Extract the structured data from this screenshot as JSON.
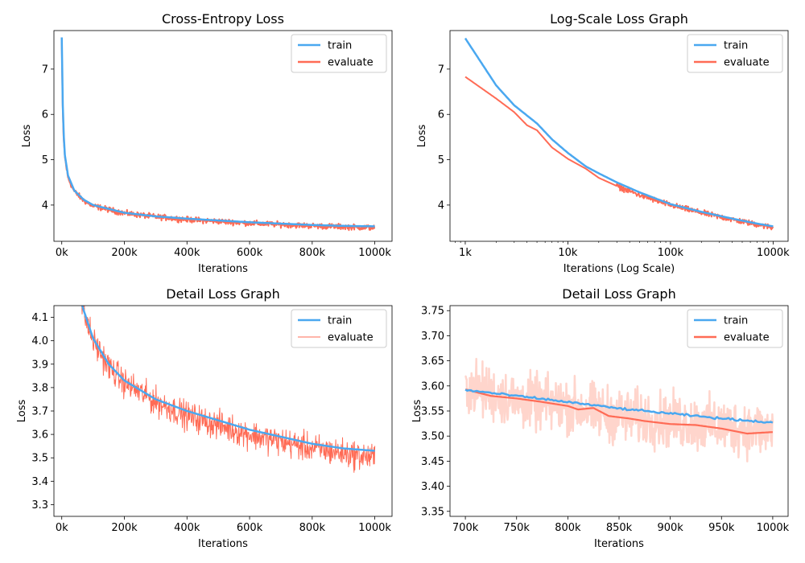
{
  "colors": {
    "train": "#4aa8f0",
    "evaluate": "#ff6b55",
    "evaluate_faded": "#ffd5cc"
  },
  "chart_data": [
    {
      "id": "p1",
      "type": "line",
      "title": "Cross-Entropy Loss",
      "xlabel": "Iterations",
      "ylabel": "Loss",
      "xscale": "linear",
      "xlim": [
        -25000,
        1055000
      ],
      "ylim": [
        3.2,
        7.85
      ],
      "xticks": [
        0,
        200000,
        400000,
        600000,
        800000,
        1000000
      ],
      "xtick_labels": [
        "0k",
        "200k",
        "400k",
        "600k",
        "800k",
        "1000k"
      ],
      "yticks": [
        4,
        5,
        6,
        7
      ],
      "ytick_labels": [
        "4",
        "5",
        "6",
        "7"
      ],
      "legend": [
        "train",
        "evaluate"
      ],
      "legend_position": "top-right",
      "series": [
        {
          "name": "evaluate",
          "style": "noisy",
          "linewidth": 2,
          "points": [
            [
              0,
              7.6
            ],
            [
              2000,
              6.5
            ],
            [
              5000,
              5.6
            ],
            [
              10000,
              5.05
            ],
            [
              20000,
              4.6
            ],
            [
              40000,
              4.3
            ],
            [
              70000,
              4.1
            ],
            [
              100000,
              3.98
            ],
            [
              200000,
              3.82
            ],
            [
              300000,
              3.74
            ],
            [
              400000,
              3.68
            ],
            [
              500000,
              3.64
            ],
            [
              600000,
              3.6
            ],
            [
              700000,
              3.57
            ],
            [
              800000,
              3.54
            ],
            [
              900000,
              3.52
            ],
            [
              1000000,
              3.5
            ]
          ],
          "noise": 0.09
        },
        {
          "name": "train",
          "style": "smooth",
          "linewidth": 2.5,
          "points": [
            [
              0,
              7.7
            ],
            [
              2000,
              6.6
            ],
            [
              5000,
              5.7
            ],
            [
              10000,
              5.1
            ],
            [
              20000,
              4.65
            ],
            [
              40000,
              4.32
            ],
            [
              70000,
              4.12
            ],
            [
              100000,
              4.0
            ],
            [
              200000,
              3.83
            ],
            [
              300000,
              3.75
            ],
            [
              400000,
              3.7
            ],
            [
              500000,
              3.66
            ],
            [
              600000,
              3.62
            ],
            [
              700000,
              3.59
            ],
            [
              800000,
              3.56
            ],
            [
              900000,
              3.54
            ],
            [
              1000000,
              3.53
            ]
          ]
        }
      ]
    },
    {
      "id": "p2",
      "type": "line",
      "title": "Log-Scale Loss Graph",
      "xlabel": "Iterations (Log Scale)",
      "ylabel": "Loss",
      "xscale": "log",
      "xlim": [
        710,
        1400000
      ],
      "ylim": [
        3.2,
        7.85
      ],
      "xticks": [
        1000,
        10000,
        100000,
        1000000
      ],
      "xtick_labels": [
        "1k",
        "10k",
        "100k",
        "1000k"
      ],
      "yticks": [
        4,
        5,
        6,
        7
      ],
      "ytick_labels": [
        "4",
        "5",
        "6",
        "7"
      ],
      "legend": [
        "train",
        "evaluate"
      ],
      "legend_position": "top-right",
      "series": [
        {
          "name": "evaluate",
          "style": "noisy",
          "linewidth": 2,
          "noise_start": 30000,
          "points": [
            [
              1000,
              6.83
            ],
            [
              2000,
              6.35
            ],
            [
              3000,
              6.05
            ],
            [
              4000,
              5.76
            ],
            [
              5000,
              5.65
            ],
            [
              7000,
              5.27
            ],
            [
              10000,
              5.02
            ],
            [
              15000,
              4.8
            ],
            [
              20000,
              4.6
            ],
            [
              30000,
              4.42
            ],
            [
              50000,
              4.22
            ],
            [
              100000,
              4.0
            ],
            [
              200000,
              3.83
            ],
            [
              400000,
              3.68
            ],
            [
              700000,
              3.57
            ],
            [
              1000000,
              3.5
            ]
          ],
          "noise": 0.09
        },
        {
          "name": "train",
          "style": "smooth",
          "linewidth": 2.5,
          "points": [
            [
              1000,
              7.68
            ],
            [
              2000,
              6.64
            ],
            [
              3000,
              6.2
            ],
            [
              5000,
              5.8
            ],
            [
              7000,
              5.45
            ],
            [
              10000,
              5.15
            ],
            [
              15000,
              4.85
            ],
            [
              20000,
              4.7
            ],
            [
              30000,
              4.5
            ],
            [
              50000,
              4.28
            ],
            [
              100000,
              4.02
            ],
            [
              200000,
              3.85
            ],
            [
              400000,
              3.7
            ],
            [
              700000,
              3.59
            ],
            [
              1000000,
              3.53
            ]
          ]
        }
      ]
    },
    {
      "id": "p3",
      "type": "line",
      "title": "Detail Loss Graph",
      "xlabel": "Iterations",
      "ylabel": "Loss",
      "xscale": "linear",
      "xlim": [
        -25000,
        1055000
      ],
      "ylim": [
        3.25,
        4.15
      ],
      "xticks": [
        0,
        200000,
        400000,
        600000,
        800000,
        1000000
      ],
      "xtick_labels": [
        "0k",
        "200k",
        "400k",
        "600k",
        "800k",
        "1000k"
      ],
      "yticks": [
        3.3,
        3.4,
        3.5,
        3.6,
        3.7,
        3.8,
        3.9,
        4.0,
        4.1
      ],
      "ytick_labels": [
        "3.3",
        "3.4",
        "3.5",
        "3.6",
        "3.7",
        "3.8",
        "3.9",
        "4.0",
        "4.1"
      ],
      "legend": [
        "train",
        "evaluate"
      ],
      "legend_position": "top-right",
      "series": [
        {
          "name": "evaluate",
          "style": "noisy",
          "linewidth": 1,
          "points": [
            [
              50000,
              4.25
            ],
            [
              70000,
              4.12
            ],
            [
              100000,
              4.0
            ],
            [
              150000,
              3.89
            ],
            [
              200000,
              3.82
            ],
            [
              300000,
              3.74
            ],
            [
              400000,
              3.68
            ],
            [
              500000,
              3.64
            ],
            [
              600000,
              3.6
            ],
            [
              700000,
              3.57
            ],
            [
              800000,
              3.54
            ],
            [
              900000,
              3.52
            ],
            [
              1000000,
              3.5
            ]
          ],
          "noise": 0.09
        },
        {
          "name": "train",
          "style": "smooth",
          "linewidth": 2.5,
          "points": [
            [
              55000,
              4.2
            ],
            [
              70000,
              4.13
            ],
            [
              100000,
              4.01
            ],
            [
              150000,
              3.9
            ],
            [
              200000,
              3.83
            ],
            [
              300000,
              3.75
            ],
            [
              400000,
              3.7
            ],
            [
              500000,
              3.66
            ],
            [
              600000,
              3.62
            ],
            [
              700000,
              3.59
            ],
            [
              800000,
              3.56
            ],
            [
              900000,
              3.54
            ],
            [
              1000000,
              3.53
            ]
          ]
        }
      ]
    },
    {
      "id": "p4",
      "type": "line",
      "title": "Detail Loss Graph",
      "xlabel": "Iterations",
      "ylabel": "Loss",
      "xscale": "linear",
      "xlim": [
        685000,
        1015000
      ],
      "ylim": [
        3.34,
        3.76
      ],
      "xticks": [
        700000,
        750000,
        800000,
        850000,
        900000,
        950000,
        1000000
      ],
      "xtick_labels": [
        "700k",
        "750k",
        "800k",
        "850k",
        "900k",
        "950k",
        "1000k"
      ],
      "yticks": [
        3.35,
        3.4,
        3.45,
        3.5,
        3.55,
        3.6,
        3.65,
        3.7,
        3.75
      ],
      "ytick_labels": [
        "3.35",
        "3.40",
        "3.45",
        "3.50",
        "3.55",
        "3.60",
        "3.65",
        "3.70",
        "3.75"
      ],
      "legend": [
        "train",
        "evaluate"
      ],
      "legend_position": "top-right",
      "series": [
        {
          "name": "evaluate_raw",
          "style": "noisy",
          "linewidth": 2.5,
          "faded": true,
          "points": [
            [
              700000,
              3.6
            ],
            [
              750000,
              3.57
            ],
            [
              800000,
              3.56
            ],
            [
              850000,
              3.54
            ],
            [
              900000,
              3.53
            ],
            [
              950000,
              3.52
            ],
            [
              1000000,
              3.51
            ]
          ],
          "noise": 0.08
        },
        {
          "name": "evaluate",
          "style": "smooth",
          "linewidth": 2.2,
          "points": [
            [
              700000,
              3.593
            ],
            [
              725000,
              3.58
            ],
            [
              750000,
              3.575
            ],
            [
              775000,
              3.568
            ],
            [
              800000,
              3.56
            ],
            [
              810000,
              3.553
            ],
            [
              825000,
              3.556
            ],
            [
              840000,
              3.54
            ],
            [
              860000,
              3.535
            ],
            [
              875000,
              3.53
            ],
            [
              900000,
              3.524
            ],
            [
              925000,
              3.522
            ],
            [
              950000,
              3.515
            ],
            [
              975000,
              3.505
            ],
            [
              1000000,
              3.508
            ]
          ]
        },
        {
          "name": "train",
          "style": "wavy",
          "linewidth": 2.5,
          "points": [
            [
              700000,
              3.592
            ],
            [
              750000,
              3.58
            ],
            [
              800000,
              3.568
            ],
            [
              850000,
              3.555
            ],
            [
              900000,
              3.545
            ],
            [
              950000,
              3.535
            ],
            [
              1000000,
              3.527
            ]
          ],
          "noise": 0.003
        }
      ]
    }
  ]
}
